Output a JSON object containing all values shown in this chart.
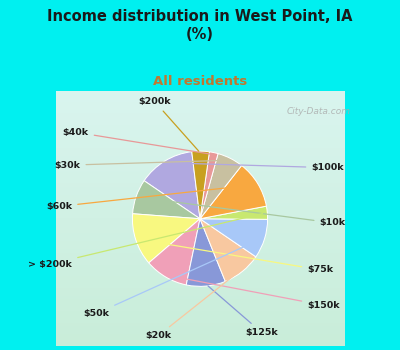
{
  "title": "Income distribution in West Point, IA\n(%)",
  "subtitle": "All residents",
  "title_color": "#1a1a1a",
  "subtitle_color": "#c07830",
  "bg_cyan": "#00f0f0",
  "bg_chart_top": "#e8f8f8",
  "bg_chart_bottom": "#d0f0d8",
  "labels": [
    "$100k",
    "$10k",
    "$75k",
    "$150k",
    "$125k",
    "$20k",
    "$50k",
    "> $200k",
    "$60k",
    "$30k",
    "$40k",
    "$200k"
  ],
  "values": [
    13,
    8,
    12,
    10,
    9,
    9,
    9,
    3,
    11,
    6,
    2,
    4
  ],
  "colors": [
    "#b0a8e0",
    "#a8c8a0",
    "#f8f880",
    "#f0a0b8",
    "#8898d8",
    "#f8c8a0",
    "#a8c8f8",
    "#c8e870",
    "#f8a840",
    "#c8c0a0",
    "#e89898",
    "#c8a020"
  ],
  "startangle": 97,
  "figsize": [
    4.0,
    3.5
  ],
  "dpi": 100
}
